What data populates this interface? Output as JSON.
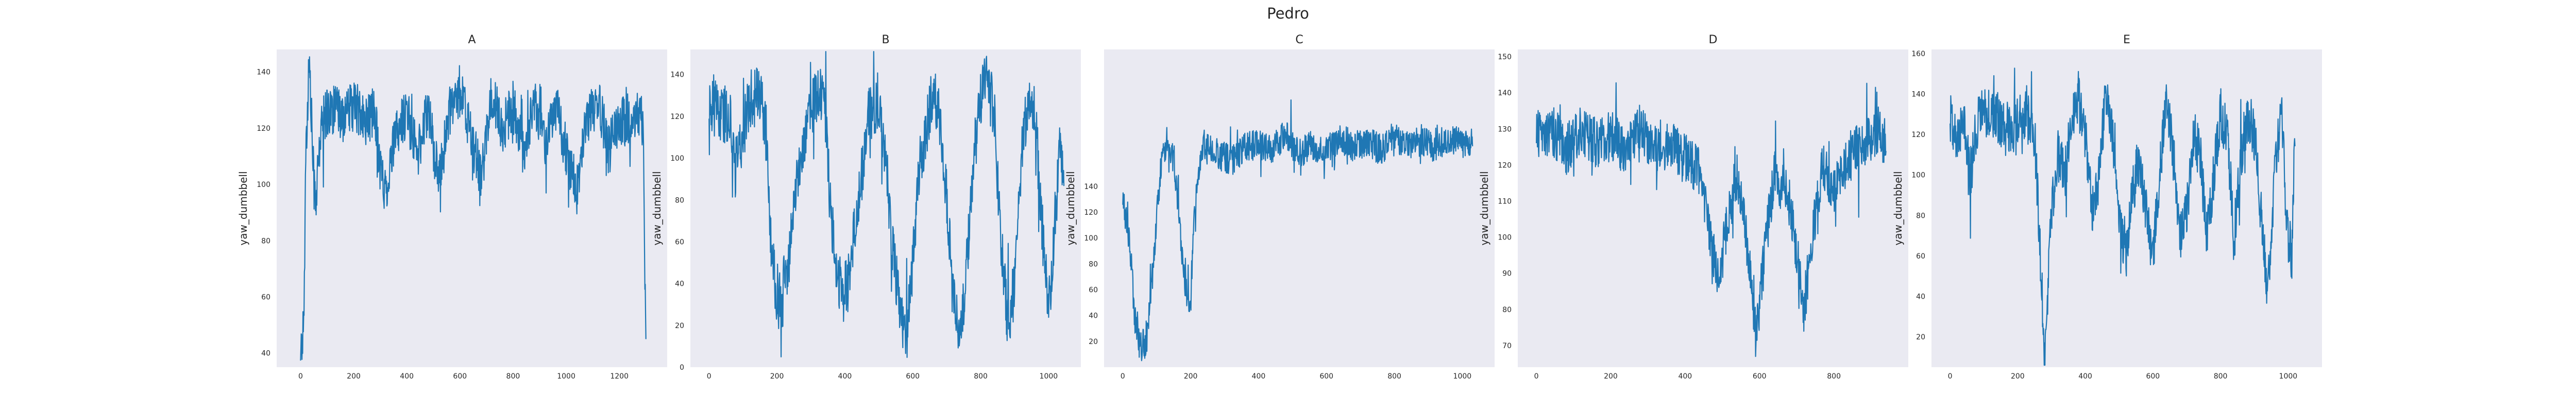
{
  "chart_data": {
    "type": "line",
    "title": "Pedro",
    "series_color": "#1f77b4",
    "plot_background": "#eaeaf2",
    "grid": false,
    "panels": [
      {
        "title": "A",
        "ylabel": "yaw_dumbbell",
        "xlim": [
          -90,
          1380
        ],
        "ylim": [
          35,
          148
        ],
        "xticks": [
          0,
          200,
          400,
          600,
          800,
          1000,
          1200
        ],
        "yticks": [
          40,
          60,
          80,
          100,
          120,
          140
        ],
        "keypoints": [
          [
            0,
            42
          ],
          [
            8,
            45
          ],
          [
            14,
            60
          ],
          [
            18,
            108
          ],
          [
            24,
            120
          ],
          [
            28,
            132
          ],
          [
            32,
            145
          ],
          [
            40,
            126
          ],
          [
            50,
            100
          ],
          [
            60,
            96
          ],
          [
            75,
            118
          ],
          [
            90,
            125
          ],
          [
            120,
            127
          ],
          [
            160,
            124
          ],
          [
            200,
            128
          ],
          [
            240,
            122
          ],
          [
            280,
            126
          ],
          [
            300,
            105
          ],
          [
            320,
            98
          ],
          [
            360,
            118
          ],
          [
            400,
            126
          ],
          [
            440,
            110
          ],
          [
            480,
            128
          ],
          [
            520,
            100
          ],
          [
            560,
            126
          ],
          [
            600,
            133
          ],
          [
            640,
            118
          ],
          [
            680,
            102
          ],
          [
            720,
            132
          ],
          [
            760,
            120
          ],
          [
            800,
            128
          ],
          [
            840,
            110
          ],
          [
            880,
            130
          ],
          [
            920,
            116
          ],
          [
            960,
            128
          ],
          [
            1000,
            112
          ],
          [
            1040,
            98
          ],
          [
            1080,
            124
          ],
          [
            1120,
            130
          ],
          [
            1160,
            112
          ],
          [
            1200,
            124
          ],
          [
            1240,
            120
          ],
          [
            1280,
            126
          ],
          [
            1290,
            118
          ],
          [
            1300,
            40
          ]
        ],
        "amp": 9
      },
      {
        "title": "B",
        "ylabel": "yaw_dumbbell",
        "xlim": [
          -55,
          1095
        ],
        "ylim": [
          0,
          152
        ],
        "xticks": [
          0,
          200,
          400,
          600,
          800,
          1000
        ],
        "yticks": [
          0,
          20,
          40,
          60,
          80,
          100,
          120,
          140
        ],
        "keypoints": [
          [
            0,
            125
          ],
          [
            30,
            122
          ],
          [
            60,
            120
          ],
          [
            80,
            100
          ],
          [
            100,
            112
          ],
          [
            120,
            128
          ],
          [
            150,
            130
          ],
          [
            170,
            110
          ],
          [
            180,
            60
          ],
          [
            200,
            35
          ],
          [
            230,
            45
          ],
          [
            260,
            90
          ],
          [
            290,
            120
          ],
          [
            320,
            132
          ],
          [
            340,
            125
          ],
          [
            360,
            70
          ],
          [
            380,
            40
          ],
          [
            410,
            40
          ],
          [
            440,
            80
          ],
          [
            470,
            120
          ],
          [
            500,
            128
          ],
          [
            520,
            100
          ],
          [
            540,
            60
          ],
          [
            560,
            30
          ],
          [
            580,
            12
          ],
          [
            600,
            50
          ],
          [
            620,
            95
          ],
          [
            640,
            115
          ],
          [
            660,
            132
          ],
          [
            680,
            120
          ],
          [
            700,
            80
          ],
          [
            720,
            30
          ],
          [
            740,
            12
          ],
          [
            760,
            50
          ],
          [
            780,
            100
          ],
          [
            800,
            130
          ],
          [
            820,
            140
          ],
          [
            840,
            120
          ],
          [
            860,
            60
          ],
          [
            880,
            20
          ],
          [
            900,
            40
          ],
          [
            920,
            100
          ],
          [
            940,
            130
          ],
          [
            960,
            120
          ],
          [
            980,
            70
          ],
          [
            1000,
            25
          ],
          [
            1020,
            70
          ],
          [
            1035,
            110
          ],
          [
            1045,
            80
          ]
        ],
        "amp": 14
      },
      {
        "title": "C",
        "ylabel": "yaw_dumbbell",
        "xlim": [
          -55,
          1095
        ],
        "ylim": [
          0,
          246
        ],
        "xticks": [
          0,
          200,
          400,
          600,
          800,
          1000
        ],
        "yticks": [
          20,
          40,
          60,
          80,
          100,
          120,
          140
        ],
        "keypoints": [
          [
            0,
            130
          ],
          [
            20,
            100
          ],
          [
            35,
            40
          ],
          [
            50,
            15
          ],
          [
            70,
            20
          ],
          [
            90,
            80
          ],
          [
            110,
            150
          ],
          [
            130,
            180
          ],
          [
            150,
            160
          ],
          [
            170,
            100
          ],
          [
            185,
            60
          ],
          [
            200,
            50
          ],
          [
            210,
            110
          ],
          [
            220,
            150
          ],
          [
            240,
            172
          ],
          [
            280,
            165
          ],
          [
            320,
            160
          ],
          [
            360,
            170
          ],
          [
            400,
            172
          ],
          [
            440,
            168
          ],
          [
            480,
            180
          ],
          [
            520,
            165
          ],
          [
            560,
            172
          ],
          [
            600,
            168
          ],
          [
            640,
            178
          ],
          [
            680,
            170
          ],
          [
            720,
            175
          ],
          [
            760,
            168
          ],
          [
            800,
            180
          ],
          [
            840,
            170
          ],
          [
            880,
            176
          ],
          [
            920,
            170
          ],
          [
            960,
            178
          ],
          [
            1000,
            172
          ],
          [
            1030,
            175
          ]
        ],
        "amp": 12
      },
      {
        "title": "D",
        "ylabel": "yaw_dumbbell",
        "xlim": [
          -50,
          1000
        ],
        "ylim": [
          64,
          152
        ],
        "xticks": [
          0,
          200,
          400,
          600,
          800
        ],
        "yticks": [
          70,
          80,
          90,
          100,
          110,
          120,
          130,
          140,
          150
        ],
        "keypoints": [
          [
            0,
            128
          ],
          [
            40,
            130
          ],
          [
            80,
            124
          ],
          [
            120,
            130
          ],
          [
            160,
            126
          ],
          [
            200,
            128
          ],
          [
            240,
            124
          ],
          [
            280,
            130
          ],
          [
            320,
            124
          ],
          [
            360,
            126
          ],
          [
            400,
            122
          ],
          [
            440,
            118
          ],
          [
            470,
            100
          ],
          [
            490,
            88
          ],
          [
            510,
            102
          ],
          [
            540,
            118
          ],
          [
            570,
            96
          ],
          [
            590,
            72
          ],
          [
            610,
            92
          ],
          [
            640,
            118
          ],
          [
            680,
            110
          ],
          [
            700,
            95
          ],
          [
            720,
            80
          ],
          [
            740,
            100
          ],
          [
            770,
            120
          ],
          [
            800,
            112
          ],
          [
            840,
            122
          ],
          [
            880,
            126
          ],
          [
            920,
            130
          ],
          [
            940,
            124
          ]
        ],
        "amp": 7
      },
      {
        "title": "E",
        "ylabel": "yaw_dumbbell",
        "xlim": [
          -55,
          1100
        ],
        "ylim": [
          5,
          162
        ],
        "xticks": [
          0,
          200,
          400,
          600,
          800,
          1000
        ],
        "yticks": [
          20,
          40,
          60,
          80,
          100,
          120,
          140,
          160
        ],
        "keypoints": [
          [
            0,
            128
          ],
          [
            20,
            118
          ],
          [
            40,
            128
          ],
          [
            60,
            100
          ],
          [
            80,
            125
          ],
          [
            100,
            132
          ],
          [
            140,
            128
          ],
          [
            180,
            122
          ],
          [
            220,
            130
          ],
          [
            250,
            120
          ],
          [
            270,
            50
          ],
          [
            280,
            10
          ],
          [
            300,
            80
          ],
          [
            320,
            110
          ],
          [
            340,
            100
          ],
          [
            360,
            130
          ],
          [
            380,
            140
          ],
          [
            400,
            120
          ],
          [
            420,
            80
          ],
          [
            440,
            100
          ],
          [
            460,
            140
          ],
          [
            480,
            120
          ],
          [
            500,
            80
          ],
          [
            520,
            60
          ],
          [
            540,
            90
          ],
          [
            560,
            110
          ],
          [
            580,
            80
          ],
          [
            600,
            60
          ],
          [
            620,
            100
          ],
          [
            640,
            140
          ],
          [
            660,
            110
          ],
          [
            680,
            70
          ],
          [
            700,
            80
          ],
          [
            720,
            120
          ],
          [
            740,
            110
          ],
          [
            760,
            70
          ],
          [
            780,
            100
          ],
          [
            800,
            130
          ],
          [
            820,
            120
          ],
          [
            840,
            70
          ],
          [
            860,
            110
          ],
          [
            880,
            130
          ],
          [
            900,
            120
          ],
          [
            920,
            80
          ],
          [
            940,
            40
          ],
          [
            960,
            100
          ],
          [
            980,
            130
          ],
          [
            995,
            80
          ],
          [
            1010,
            55
          ],
          [
            1020,
            125
          ]
        ],
        "amp": 13
      }
    ]
  }
}
